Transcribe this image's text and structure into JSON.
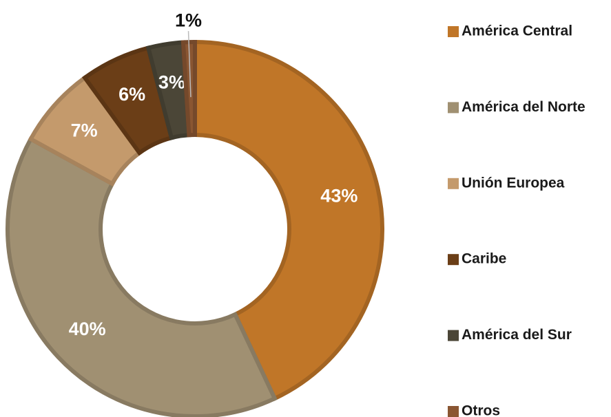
{
  "chart_data": {
    "type": "donut",
    "categories": [
      "América Central",
      "América del Norte",
      "Unión Europea",
      "Caribe",
      "América del Sur",
      "Otros"
    ],
    "values": [
      43,
      40,
      7,
      6,
      3,
      1
    ],
    "value_labels": [
      "43%",
      "40%",
      "7%",
      "6%",
      "3%",
      "1%"
    ],
    "colors": [
      "#c07628",
      "#a09072",
      "#c49a6c",
      "#6b3e17",
      "#4b4637",
      "#8a5632"
    ],
    "legend": "right"
  }
}
